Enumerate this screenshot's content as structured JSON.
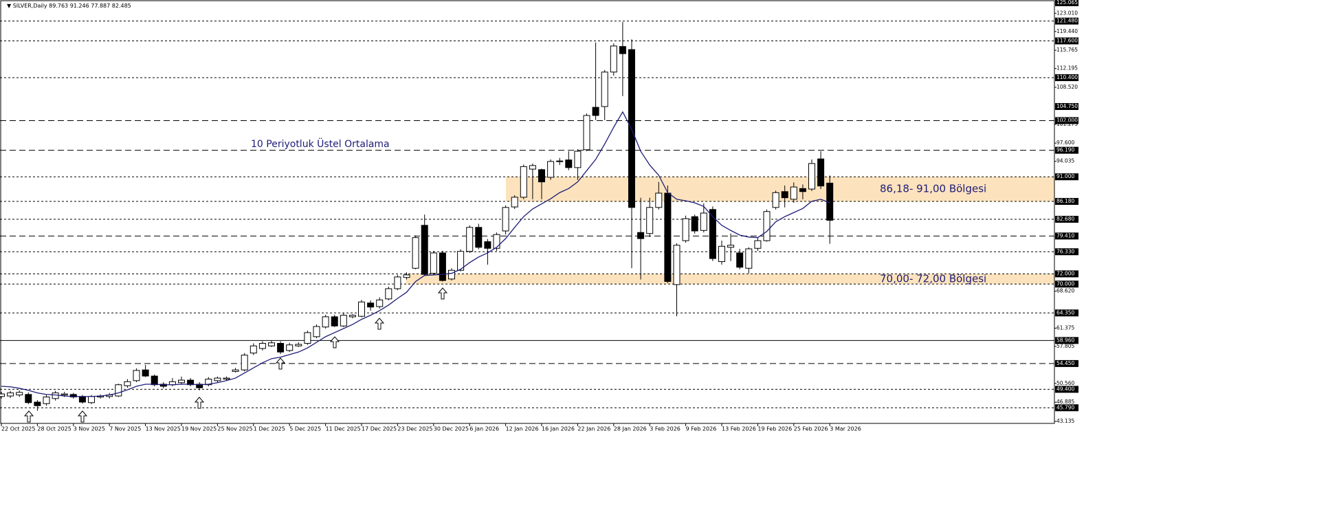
{
  "chart_data": {
    "type": "candlestick",
    "title": "SILVER,Daily",
    "annotation": "10 Periyotluk Üstel Ortalama",
    "categories": [
      "22 Oct 2025",
      null,
      null,
      null,
      "28 Oct 2025",
      null,
      null,
      null,
      "3 Nov 2025",
      null,
      null,
      null,
      "7 Nov 2025",
      null,
      null,
      null,
      "13 Nov 2025",
      null,
      null,
      null,
      "19 Nov 2025",
      null,
      null,
      null,
      "25 Nov 2025",
      null,
      null,
      null,
      "1 Dec 2025",
      null,
      null,
      null,
      "5 Dec 2025",
      null,
      null,
      null,
      "11 Dec 2025",
      null,
      null,
      null,
      "17 Dec 2025",
      null,
      null,
      null,
      "23 Dec 2025",
      null,
      null,
      null,
      "30 Dec 2025",
      null,
      null,
      null,
      "6 Jan 2026",
      null,
      null,
      null,
      "12 Jan 2026",
      null,
      null,
      null,
      "16 Jan 2026",
      null,
      null,
      null,
      "22 Jan 2026",
      null,
      null,
      null,
      "28 Jan 2026",
      null,
      null,
      null,
      "3 Feb 2026",
      null,
      null,
      null,
      "9 Feb 2026",
      null,
      null,
      null,
      "13 Feb 2026",
      null,
      null,
      null,
      "19 Feb 2026",
      null,
      null,
      null,
      "25 Feb 2026",
      null,
      null,
      null,
      "3 Mar 2026"
    ],
    "open": [
      48.0,
      48.1,
      48.3,
      48.4,
      46.9,
      46.6,
      47.6,
      48.3,
      48.4,
      48.0,
      46.8,
      47.9,
      48.0,
      48.1,
      50.1,
      51.1,
      53.2,
      52.0,
      50.4,
      50.3,
      50.7,
      51.2,
      50.4,
      50.3,
      51.1,
      51.4,
      52.9,
      53.2,
      56.5,
      57.4,
      57.9,
      58.4,
      57.0,
      57.9,
      58.4,
      59.7,
      61.6,
      63.6,
      61.8,
      63.6,
      63.7,
      66.3,
      65.6,
      67.1,
      69.1,
      71.3,
      73.1,
      81.5,
      72.1,
      76.1,
      71.0,
      72.7,
      76.4,
      81.1,
      78.3,
      77.0,
      80.4,
      85.1,
      87.0,
      92.5,
      92.4,
      90.9,
      94.0,
      94.3,
      92.8,
      96.3,
      104.6,
      104.75,
      111.5,
      116.5,
      115.9,
      80.1,
      79.9,
      85.0,
      87.8,
      69.9,
      78.5,
      83.2,
      80.5,
      84.6,
      74.4,
      77.2,
      76.1,
      73.1,
      77.0,
      78.5,
      85.0,
      88.1,
      86.6,
      88.7,
      88.6,
      94.5,
      89.763
    ],
    "high": [
      48.9,
      49.1,
      49.2,
      48.8,
      47.3,
      48.3,
      49.1,
      48.9,
      48.7,
      48.3,
      48.3,
      48.4,
      48.7,
      50.5,
      51.4,
      53.5,
      54.2,
      52.3,
      50.8,
      51.6,
      51.9,
      51.6,
      50.8,
      51.8,
      51.9,
      51.9,
      53.6,
      56.5,
      58.4,
      58.8,
      58.9,
      58.8,
      58.5,
      58.6,
      60.9,
      62.1,
      64.0,
      64.0,
      64.3,
      64.1,
      66.9,
      66.8,
      67.4,
      69.5,
      71.8,
      72.3,
      79.5,
      83.6,
      76.5,
      76.5,
      73.1,
      76.8,
      81.5,
      81.8,
      78.8,
      80.1,
      85.4,
      87.4,
      93.4,
      93.6,
      92.6,
      94.4,
      94.7,
      96.0,
      96.4,
      103.4,
      117.3,
      111.9,
      117.1,
      121.3,
      117.9,
      86.9,
      86.9,
      90.0,
      89.3,
      78.0,
      83.4,
      83.6,
      85.8,
      85.2,
      78.5,
      79.9,
      76.9,
      77.2,
      79.2,
      84.6,
      88.3,
      89.3,
      89.9,
      89.5,
      94.4,
      96.0,
      91.246
    ],
    "low": [
      47.6,
      47.7,
      47.9,
      46.5,
      45.2,
      46.2,
      47.2,
      47.9,
      47.6,
      46.6,
      46.5,
      47.6,
      47.6,
      47.9,
      49.7,
      50.8,
      51.8,
      50.0,
      49.6,
      50.0,
      50.3,
      50.0,
      49.2,
      50.0,
      50.8,
      51.1,
      52.7,
      52.9,
      56.1,
      57.0,
      57.7,
      56.3,
      56.7,
      57.7,
      58.1,
      59.4,
      61.3,
      61.6,
      61.6,
      63.3,
      63.5,
      64.8,
      65.2,
      66.8,
      68.8,
      70.9,
      72.9,
      71.6,
      71.8,
      70.5,
      70.7,
      72.5,
      76.1,
      76.8,
      73.8,
      76.5,
      79.7,
      84.7,
      86.6,
      86.6,
      86.6,
      90.4,
      93.3,
      92.3,
      90.4,
      96.0,
      102.1,
      102.1,
      110.8,
      106.8,
      73.1,
      70.9,
      79.2,
      84.6,
      70.2,
      63.7,
      78.1,
      79.9,
      80.1,
      74.5,
      73.8,
      74.5,
      72.9,
      72.1,
      76.5,
      78.3,
      84.6,
      85.0,
      85.9,
      86.6,
      88.2,
      88.6,
      77.887
    ],
    "close": [
      48.5,
      48.7,
      48.8,
      46.8,
      46.2,
      47.9,
      48.7,
      48.5,
      47.9,
      46.9,
      48.0,
      48.1,
      48.3,
      50.3,
      50.9,
      53.1,
      52.0,
      50.3,
      50.0,
      50.9,
      51.2,
      50.3,
      49.7,
      51.4,
      51.6,
      51.6,
      53.2,
      56.1,
      57.9,
      58.4,
      58.5,
      56.7,
      58.1,
      58.2,
      60.5,
      61.7,
      63.6,
      61.8,
      63.9,
      63.9,
      66.5,
      65.5,
      66.9,
      69.1,
      71.4,
      71.8,
      79.1,
      71.9,
      76.1,
      70.7,
      72.7,
      76.4,
      81.1,
      77.2,
      77.0,
      79.7,
      85.0,
      87.0,
      93.0,
      93.2,
      90.0,
      94.0,
      94.1,
      92.8,
      96.0,
      103.0,
      103.0,
      111.5,
      116.6,
      115.1,
      85.0,
      78.9,
      85.0,
      87.8,
      70.5,
      77.6,
      82.8,
      80.4,
      83.9,
      75.0,
      77.4,
      77.6,
      73.3,
      76.9,
      78.5,
      84.2,
      87.9,
      86.9,
      89.0,
      88.1,
      93.6,
      89.2,
      82.485
    ],
    "up_color": "#ffffff",
    "down_color": "#000000",
    "ema": {
      "color": "#1c1c78",
      "values": [
        50.0,
        49.9,
        49.6,
        49.2,
        48.7,
        48.4,
        48.3,
        48.1,
        48.0,
        48.0,
        48.0,
        48.1,
        48.3,
        48.7,
        49.3,
        50.0,
        50.4,
        50.4,
        50.3,
        50.3,
        50.4,
        50.4,
        50.3,
        50.4,
        50.7,
        51.1,
        51.6,
        52.6,
        53.6,
        54.6,
        55.4,
        55.7,
        56.2,
        56.7,
        57.5,
        58.6,
        59.7,
        60.5,
        61.3,
        62.1,
        63.1,
        63.9,
        64.8,
        65.9,
        67.2,
        68.4,
        70.5,
        71.7,
        71.8,
        71.9,
        72.1,
        72.9,
        74.2,
        75.3,
        76.1,
        77.2,
        78.9,
        81.1,
        83.2,
        84.7,
        85.7,
        86.7,
        87.9,
        88.7,
        90.0,
        92.2,
        94.4,
        97.4,
        100.7,
        103.7,
        100.3,
        96.0,
        93.3,
        91.3,
        87.9,
        86.6,
        86.3,
        85.9,
        85.2,
        83.2,
        81.5,
        80.5,
        79.6,
        79.2,
        79.1,
        80.3,
        82.2,
        83.2,
        84.0,
        84.8,
        86.2,
        86.6,
        85.9
      ]
    },
    "ylim": [
      43.135,
      125.065
    ],
    "yticks": [
      {
        "value": 123.01,
        "label": "123.010"
      },
      {
        "value": 119.44,
        "label": "119.440"
      },
      {
        "value": 115.765,
        "label": "115.765"
      },
      {
        "value": 112.195,
        "label": "112.195"
      },
      {
        "value": 108.52,
        "label": "108.520"
      },
      {
        "value": 101.275,
        "label": "101.275"
      },
      {
        "value": 97.6,
        "label": "97.600"
      },
      {
        "value": 94.035,
        "label": "94.035"
      },
      {
        "value": 68.62,
        "label": "68.620"
      },
      {
        "value": 61.375,
        "label": "61.375"
      },
      {
        "value": 57.805,
        "label": "57.805"
      },
      {
        "value": 50.56,
        "label": "50.560"
      },
      {
        "value": 46.885,
        "label": "46.885"
      },
      {
        "value": 43.135,
        "label": "43.135"
      }
    ],
    "levels": [
      {
        "value": 125.065,
        "label": "125.065",
        "style": "none"
      },
      {
        "value": 121.48,
        "label": "121.480"
      },
      {
        "value": 117.6,
        "label": "117.600"
      },
      {
        "value": 110.4,
        "label": "110.400"
      },
      {
        "value": 104.75,
        "label": "104.750",
        "style": "none"
      },
      {
        "value": 102,
        "label": "102.000",
        "style": "long-dash"
      },
      {
        "value": 96.19,
        "label": "96.190",
        "style": "long-dash"
      },
      {
        "value": 91,
        "label": "91.000"
      },
      {
        "value": 86.18,
        "label": "86.180"
      },
      {
        "value": 82.68,
        "label": "82.680"
      },
      {
        "value": 79.41,
        "label": "79.410",
        "style": "long-dash"
      },
      {
        "value": 76.33,
        "label": "76.330"
      },
      {
        "value": 72,
        "label": "72.000"
      },
      {
        "value": 70,
        "label": "70.000"
      },
      {
        "value": 64.35,
        "label": "64.350"
      },
      {
        "value": 58.96,
        "label": "58.960",
        "style": "solid"
      },
      {
        "value": 54.45,
        "label": "54.450",
        "style": "long-dash"
      },
      {
        "value": 49.4,
        "label": "49.400"
      },
      {
        "value": 45.79,
        "label": "45.790"
      }
    ],
    "zones": [
      {
        "label": "86,18- 91,00 Bölgesi",
        "from": 86.18,
        "to": 91,
        "color": "#fde3bd"
      },
      {
        "label": "70,00- 72,00 Bölgesi",
        "from": 70,
        "to": 72,
        "color": "#fde3bd"
      }
    ],
    "grid": false
  }
}
